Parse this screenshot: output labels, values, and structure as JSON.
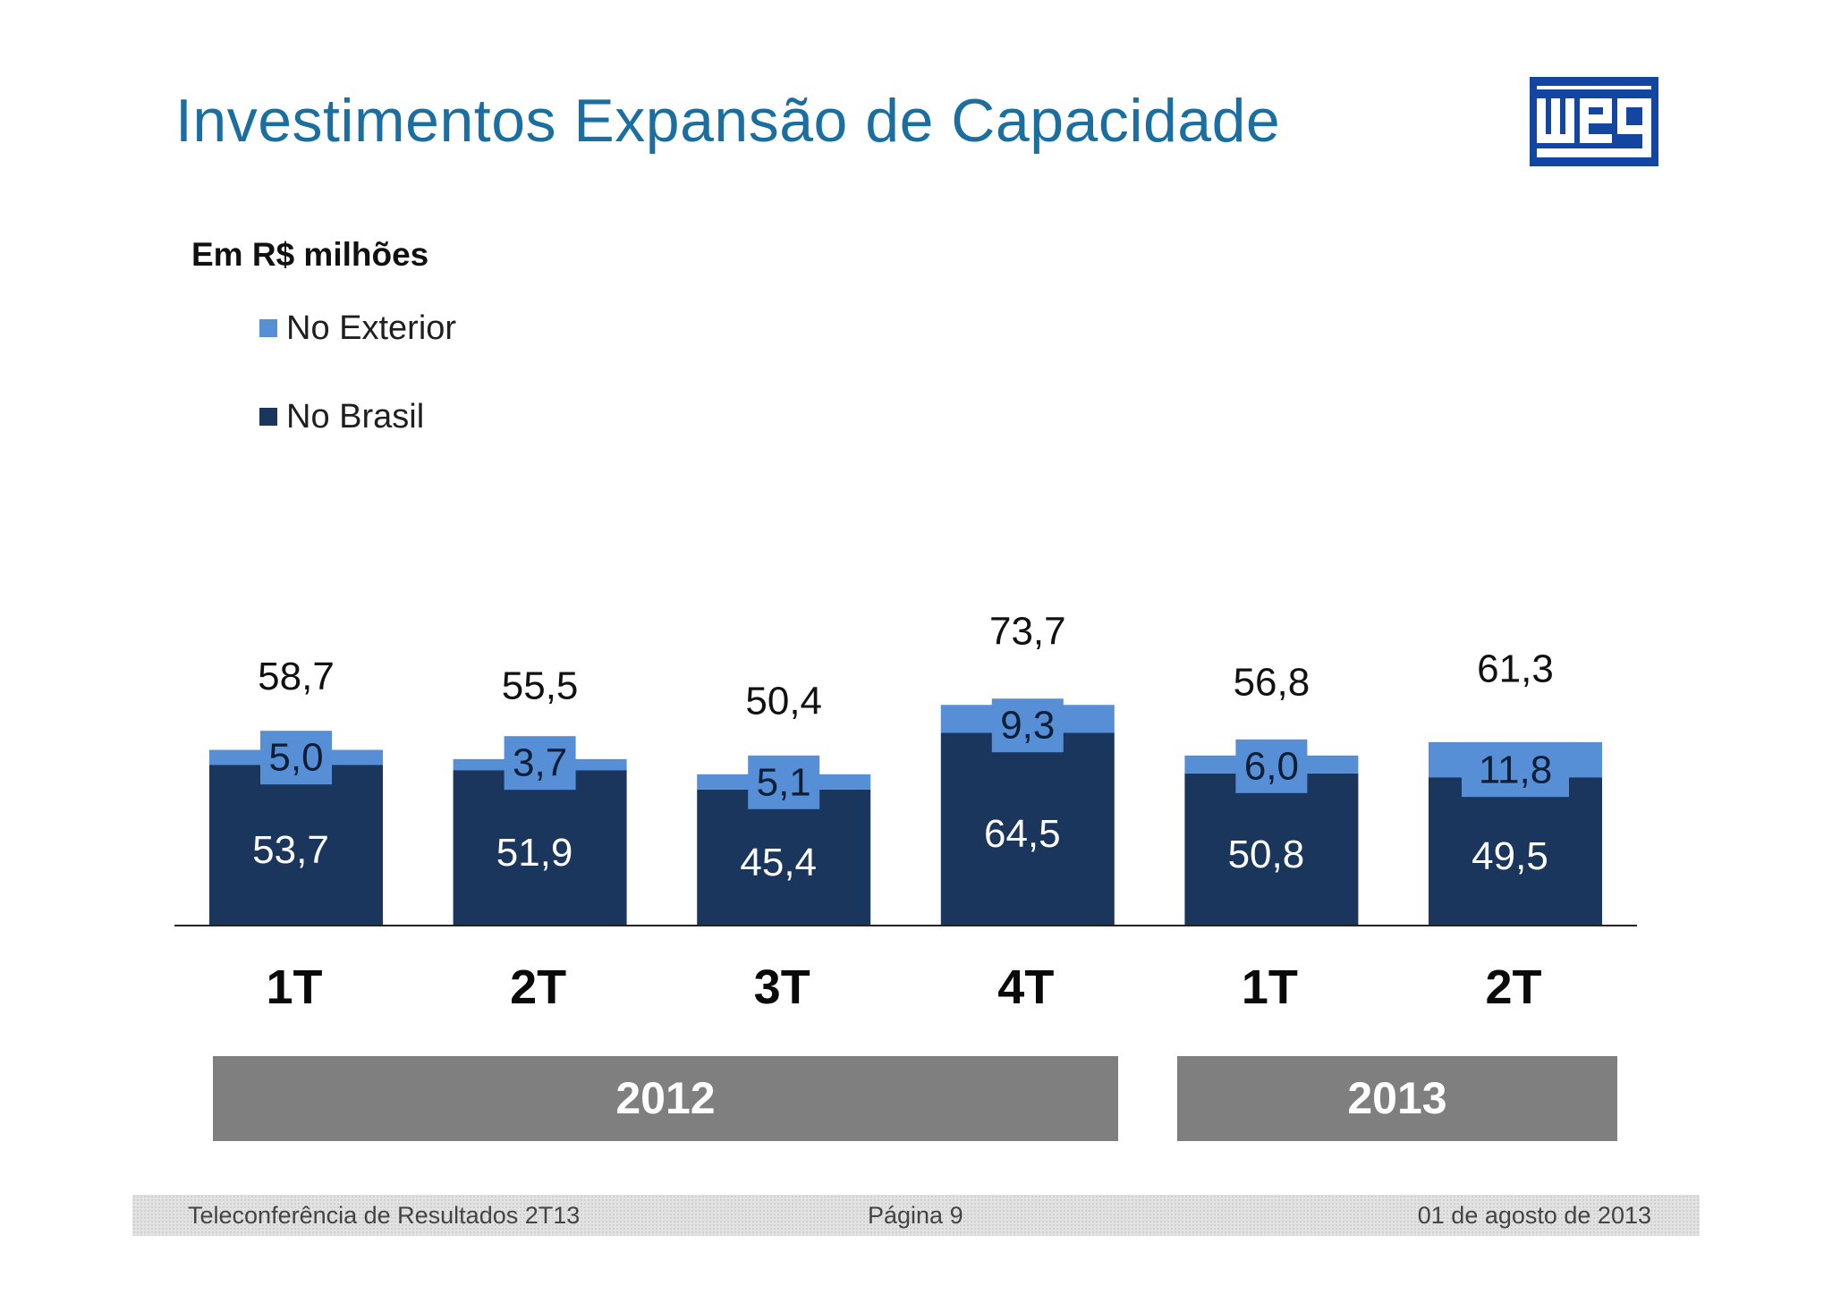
{
  "title": "Investimentos Expansão de Capacidade",
  "logo_text": "WEG",
  "subtitle": "Em R$ milhões",
  "colors": {
    "title": "#1a6ea0",
    "no_exterior": "#568fd6",
    "no_brasil": "#1a365d",
    "year_band": "#807f80",
    "logo": "#1346a1"
  },
  "chart_data": {
    "type": "bar",
    "stacked": true,
    "categories": [
      "1T",
      "2T",
      "3T",
      "4T",
      "1T",
      "2T"
    ],
    "groups": [
      {
        "label": "2012",
        "categories": [
          "1T",
          "2T",
          "3T",
          "4T"
        ]
      },
      {
        "label": "2013",
        "categories": [
          "1T",
          "2T"
        ]
      }
    ],
    "series": [
      {
        "name": "No Brasil",
        "color": "#1a365d",
        "values": [
          53.7,
          51.9,
          45.4,
          64.5,
          50.8,
          49.5
        ],
        "labels": [
          "53,7",
          "51,9",
          "45,4",
          "64,5",
          "50,8",
          "49,5"
        ]
      },
      {
        "name": "No Exterior",
        "color": "#568fd6",
        "values": [
          5.0,
          3.7,
          5.1,
          9.3,
          6.0,
          11.8
        ],
        "labels": [
          "5,0",
          "3,7",
          "5,1",
          "9,3",
          "6,0",
          "11,8"
        ]
      }
    ],
    "totals": [
      58.7,
      55.5,
      50.4,
      73.7,
      56.8,
      61.3
    ],
    "total_labels": [
      "58,7",
      "55,5",
      "50,4",
      "73,7",
      "56,8",
      "61,3"
    ],
    "legend": [
      "No Exterior",
      "No Brasil"
    ],
    "legend_position": "top-left",
    "ylim": [
      0,
      80
    ],
    "grid": false,
    "xlabel": "",
    "ylabel": ""
  },
  "footer": {
    "left": "Teleconferência de Resultados  2T13",
    "center": "Página 9",
    "right": "01 de agosto de 2013"
  }
}
